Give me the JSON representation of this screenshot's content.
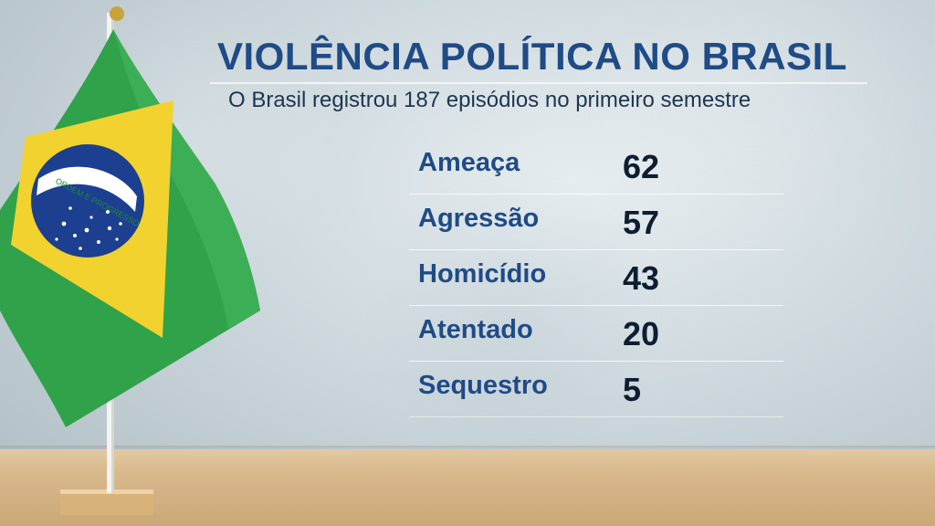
{
  "headline": {
    "title": "VIOLÊNCIA POLÍTICA NO BRASIL",
    "subtitle": "O Brasil registrou 187 episódios no primeiro semestre"
  },
  "stats": [
    {
      "label": "Ameaça",
      "value": "62"
    },
    {
      "label": "Agressão",
      "value": "57"
    },
    {
      "label": "Homicídio",
      "value": "43"
    },
    {
      "label": "Atentado",
      "value": "20"
    },
    {
      "label": "Sequestro",
      "value": "5"
    }
  ],
  "flag": {
    "motto": "ORDEM E PROGRESSO",
    "colors": {
      "green": "#2fa24a",
      "yellow": "#f2d22e",
      "blue": "#1d3f8f",
      "white": "#ffffff"
    }
  },
  "colors": {
    "title": "#1f4b86",
    "value": "#0e1d30",
    "subtitle": "#1e3550"
  }
}
